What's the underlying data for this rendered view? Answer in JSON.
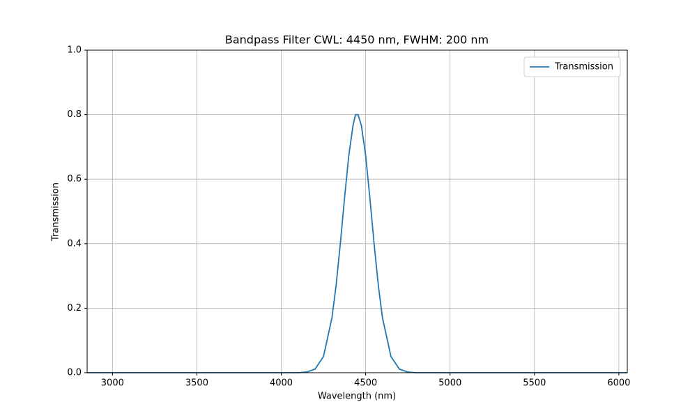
{
  "chart_data": {
    "type": "line",
    "title": "Bandpass Filter CWL: 4450 nm, FWHM: 200 nm",
    "x_label": "Wavelength (nm)",
    "y_label": "Transmission",
    "x": [
      2850,
      4000,
      4100,
      4150,
      4200,
      4250,
      4300,
      4325,
      4350,
      4375,
      4400,
      4425,
      4440,
      4455,
      4475,
      4500,
      4525,
      4550,
      4575,
      4600,
      4650,
      4700,
      4750,
      4800,
      6050
    ],
    "series": [
      {
        "name": "Transmission",
        "color": "#1f77b4",
        "values": [
          0,
          0,
          0,
          0.002,
          0.011,
          0.05,
          0.169,
          0.271,
          0.4,
          0.542,
          0.673,
          0.766,
          0.8,
          0.8,
          0.766,
          0.673,
          0.542,
          0.4,
          0.271,
          0.169,
          0.05,
          0.011,
          0.002,
          0,
          0
        ]
      }
    ],
    "xlim": [
      2850,
      6050
    ],
    "xticks": [
      3000,
      3500,
      4000,
      4500,
      5000,
      5500,
      6000
    ],
    "ylim": [
      0,
      1
    ],
    "yticks": [
      {
        "value": 0,
        "label": "0.0"
      },
      {
        "value": 0.2,
        "label": "0.2"
      },
      {
        "value": 0.4,
        "label": "0.4"
      },
      {
        "value": 0.6,
        "label": "0.6"
      },
      {
        "value": 0.8,
        "label": "0.8"
      },
      {
        "value": 1,
        "label": "1.0"
      }
    ],
    "grid": true,
    "legend": "upper right"
  }
}
